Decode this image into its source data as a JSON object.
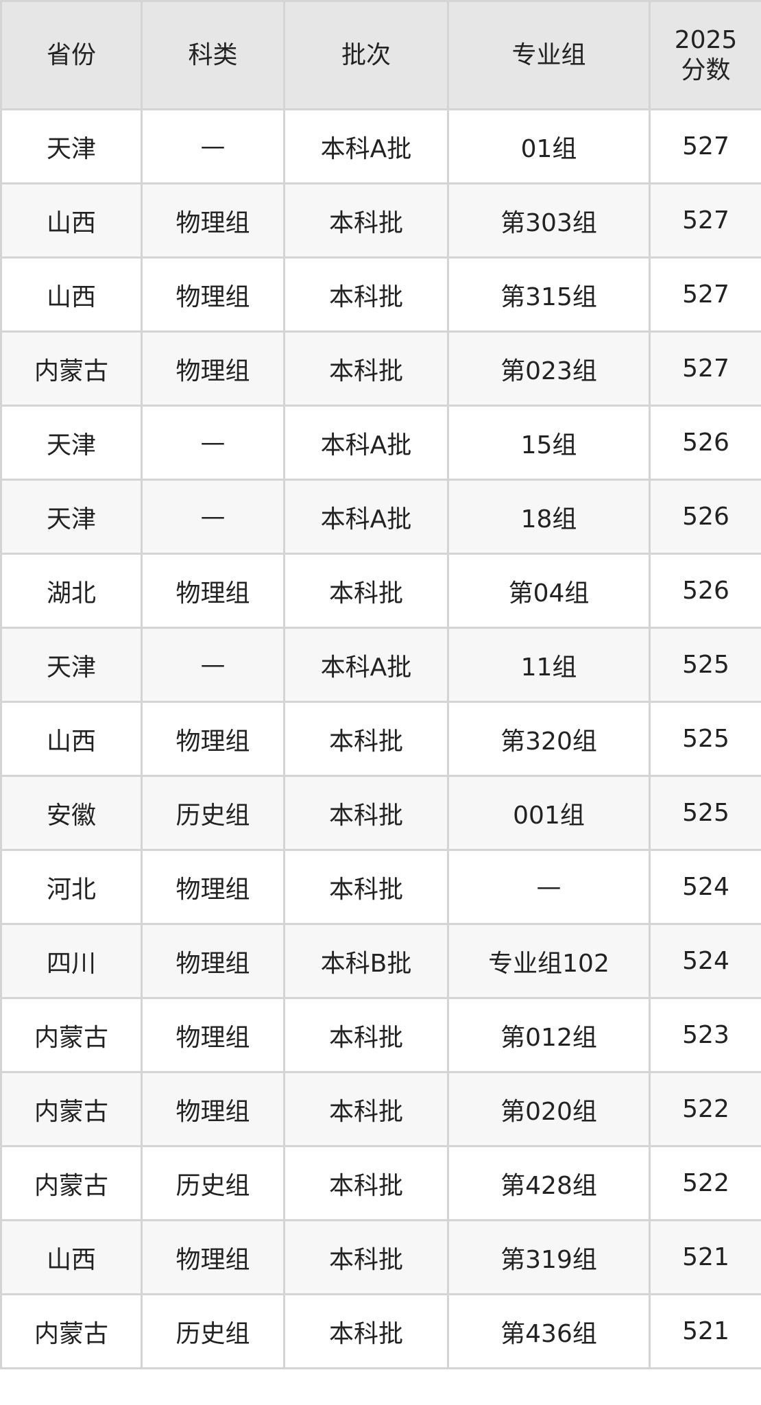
{
  "headers": [
    "省份",
    "科类",
    "批次",
    "专业组",
    "2025\n分数"
  ],
  "header_score_line1": "2025",
  "header_score_line2": "分数",
  "rows": [
    [
      "天津",
      "—",
      "本科A批",
      "01组",
      "527"
    ],
    [
      "山西",
      "物理组",
      "本科批",
      "第303组",
      "527"
    ],
    [
      "山西",
      "物理组",
      "本科批",
      "第315组",
      "527"
    ],
    [
      "内蒙古",
      "物理组",
      "本科批",
      "第023组",
      "527"
    ],
    [
      "天津",
      "—",
      "本科A批",
      "15组",
      "526"
    ],
    [
      "天津",
      "—",
      "本科A批",
      "18组",
      "526"
    ],
    [
      "湖北",
      "物理组",
      "本科批",
      "第04组",
      "526"
    ],
    [
      "天津",
      "—",
      "本科A批",
      "11组",
      "525"
    ],
    [
      "山西",
      "物理组",
      "本科批",
      "第320组",
      "525"
    ],
    [
      "安徽",
      "历史组",
      "本科批",
      "001组",
      "525"
    ],
    [
      "河北",
      "物理组",
      "本科批",
      "—",
      "524"
    ],
    [
      "四川",
      "物理组",
      "本科B批",
      "专业组102",
      "524"
    ],
    [
      "内蒙古",
      "物理组",
      "本科批",
      "第012组",
      "523"
    ],
    [
      "内蒙古",
      "物理组",
      "本科批",
      "第020组",
      "522"
    ],
    [
      "内蒙古",
      "历史组",
      "本科批",
      "第428组",
      "522"
    ],
    [
      "山西",
      "物理组",
      "本科批",
      "第319组",
      "521"
    ],
    [
      "内蒙古",
      "历史组",
      "本科批",
      "第436组",
      "521"
    ]
  ],
  "colors": {
    "header_bg": "#e6e6e6",
    "row_alt_bg": "#f7f7f7",
    "border": "#d4d4d4"
  }
}
